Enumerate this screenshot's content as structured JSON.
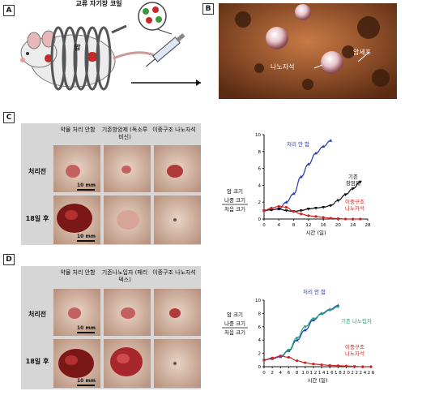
{
  "panel_a": {
    "label": "A",
    "coil_label": "교류 자기장 코일",
    "cancer_label": "암"
  },
  "panel_b": {
    "label": "B",
    "nano_label": "나노자석",
    "cancer_cell_label": "암세포"
  },
  "panel_c": {
    "label": "C",
    "col_headers": [
      "약물 처리 안함",
      "기존항암제 (독소루비신)",
      "이중구조 나노자석"
    ],
    "row_headers": [
      "처리전",
      "18일 후"
    ],
    "scale_bar": "10 mm",
    "chart_data": {
      "type": "line",
      "ylabel_top": "암 크기",
      "ylabel_num": "나중 크기",
      "ylabel_den": "처음 크기",
      "xlabel": "시간 (일)",
      "xlim": [
        0,
        28
      ],
      "ylim": [
        0,
        10
      ],
      "xticks": [
        0,
        4,
        8,
        12,
        16,
        20,
        24,
        28
      ],
      "yticks": [
        0,
        2,
        4,
        6,
        8,
        10
      ],
      "series": [
        {
          "name": "처리 안 함",
          "color": "#2b3bb5",
          "marker": "triangle",
          "x": [
            0,
            2,
            4,
            6,
            8,
            10,
            12,
            14,
            16,
            18
          ],
          "y": [
            1.0,
            1.1,
            1.2,
            2.0,
            3.0,
            5.0,
            6.5,
            7.8,
            8.6,
            9.3
          ]
        },
        {
          "name": "기존 항암제",
          "color": "#111111",
          "marker": "triangle-down",
          "x": [
            0,
            2,
            4,
            6,
            8,
            10,
            12,
            14,
            16,
            18,
            20,
            22,
            24,
            26
          ],
          "y": [
            1.0,
            1.1,
            1.2,
            1.0,
            0.9,
            1.0,
            1.2,
            1.3,
            1.4,
            1.6,
            2.2,
            2.9,
            3.6,
            4.4
          ]
        },
        {
          "name": "이중구조 나노자석",
          "color": "#d42020",
          "marker": "circle",
          "x": [
            0,
            2,
            4,
            6,
            8,
            10,
            12,
            14,
            16,
            18,
            20,
            22,
            24,
            26
          ],
          "y": [
            1.0,
            1.3,
            1.5,
            1.4,
            0.9,
            0.6,
            0.4,
            0.3,
            0.2,
            0.1,
            0.05,
            0.0,
            0.0,
            0.0
          ]
        }
      ]
    }
  },
  "panel_d": {
    "label": "D",
    "col_headers": [
      "약물 처리 안함",
      "기존나노입자 (페리덱스)",
      "이중구조 나노자석"
    ],
    "row_headers": [
      "처리전",
      "18일 후"
    ],
    "scale_bar": "10 mm",
    "chart_data": {
      "type": "line",
      "ylabel_top": "암 크기",
      "ylabel_num": "나중 크기",
      "ylabel_den": "처음 크기",
      "xlabel": "시간 (일)",
      "xlim": [
        0,
        26
      ],
      "ylim": [
        0,
        10
      ],
      "xticks": [
        "0",
        "2",
        "4",
        "6",
        "8",
        "1 0",
        "1 2",
        "1 4",
        "1 6",
        "1 8",
        "2 0",
        "2 2",
        "2 4",
        "2 6"
      ],
      "yticks": [
        0,
        2,
        4,
        6,
        8,
        10
      ],
      "series": [
        {
          "name": "처리 안 함",
          "color": "#2b3bb5",
          "marker": "triangle",
          "x": [
            0,
            2,
            4,
            6,
            8,
            10,
            12,
            14,
            16,
            18
          ],
          "y": [
            1.0,
            1.2,
            1.5,
            2.4,
            4.0,
            5.5,
            7.0,
            8.0,
            8.6,
            9.2
          ]
        },
        {
          "name": "기존 나노입자",
          "color": "#1aa87a",
          "marker": "triangle-down",
          "x": [
            0,
            2,
            4,
            6,
            8,
            10,
            12,
            14,
            16,
            18
          ],
          "y": [
            1.0,
            1.3,
            1.6,
            2.5,
            4.3,
            6.0,
            7.2,
            7.9,
            8.5,
            9.0
          ]
        },
        {
          "name": "이중구조 나노자석",
          "color": "#d42020",
          "marker": "circle",
          "x": [
            0,
            2,
            4,
            6,
            8,
            10,
            12,
            14,
            16,
            18,
            20,
            22,
            24,
            26
          ],
          "y": [
            1.0,
            1.3,
            1.6,
            1.4,
            0.9,
            0.6,
            0.4,
            0.3,
            0.2,
            0.15,
            0.1,
            0.05,
            0.0,
            0.0
          ]
        }
      ]
    }
  }
}
